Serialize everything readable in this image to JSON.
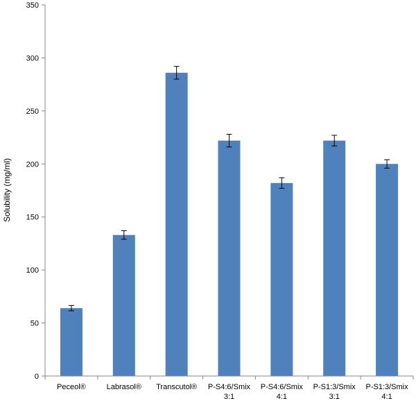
{
  "chart_data": {
    "type": "bar",
    "title": "",
    "xlabel": "",
    "ylabel": "Solubility (mg/ml)",
    "ylim": [
      0,
      350
    ],
    "yticks": [
      0,
      50,
      100,
      150,
      200,
      250,
      300,
      350
    ],
    "grid": false,
    "legend": "none",
    "bar_color": "#4F81BD",
    "axis_color": "#868686",
    "categories": [
      [
        "Peceol®"
      ],
      [
        "Labrasol®"
      ],
      [
        "Transcutol®"
      ],
      [
        "P-S4:6/Smix",
        "3:1"
      ],
      [
        "P-S4:6/Smix",
        "4:1"
      ],
      [
        "P-S1:3/Smix",
        "3:1"
      ],
      [
        "P-S1:3/Smix",
        "4:1"
      ]
    ],
    "values": [
      64,
      133,
      286,
      222,
      182,
      222,
      200
    ],
    "errors": [
      2.5,
      4,
      6,
      6,
      5,
      5,
      4
    ]
  }
}
